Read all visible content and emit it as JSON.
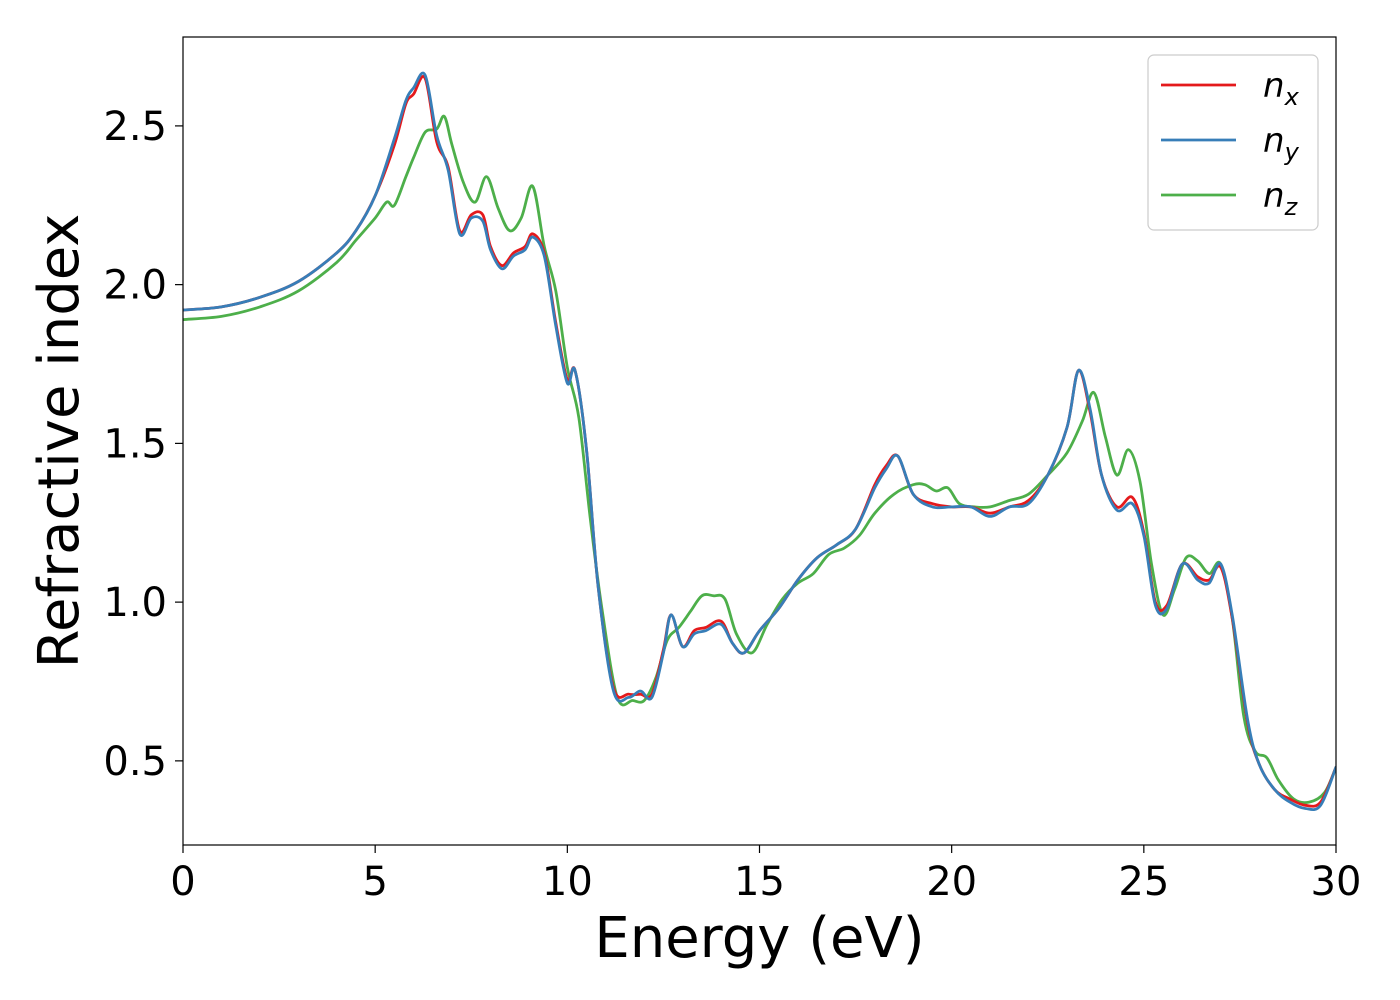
{
  "chart_data": {
    "type": "line",
    "xlabel": "Energy (eV)",
    "ylabel": "Refractive index",
    "xlim": [
      0,
      30
    ],
    "ylim": [
      0.235,
      2.78
    ],
    "xticks": [
      0,
      5,
      10,
      15,
      20,
      25,
      30
    ],
    "xtick_labels": [
      "0",
      "5",
      "10",
      "15",
      "20",
      "25",
      "30"
    ],
    "yticks": [
      0.5,
      1.0,
      1.5,
      2.0,
      2.5
    ],
    "ytick_labels": [
      "0.5",
      "1.0",
      "1.5",
      "2.0",
      "2.5"
    ],
    "grid": false,
    "legend_position": "top-right",
    "series": [
      {
        "name": "n",
        "subscript": "x",
        "color": "#e41a1c",
        "x": [
          0,
          1,
          2,
          3,
          4,
          4.5,
          5,
          5.5,
          5.8,
          6.0,
          6.3,
          6.6,
          6.9,
          7.2,
          7.5,
          7.8,
          8.0,
          8.3,
          8.6,
          8.9,
          9.1,
          9.4,
          9.7,
          10.0,
          10.2,
          10.5,
          10.8,
          11.2,
          11.6,
          11.9,
          12.2,
          12.5,
          12.7,
          13.0,
          13.3,
          13.6,
          14.0,
          14.3,
          14.6,
          15.0,
          15.5,
          16.0,
          16.5,
          17.0,
          17.5,
          18.0,
          18.3,
          18.6,
          19.0,
          19.5,
          20.0,
          20.5,
          21.0,
          21.5,
          22.0,
          22.5,
          23.0,
          23.3,
          23.6,
          23.9,
          24.3,
          24.7,
          25.0,
          25.3,
          25.6,
          26.0,
          26.4,
          26.7,
          27.0,
          27.3,
          27.7,
          28.0,
          28.4,
          28.8,
          29.2,
          29.6,
          30.0
        ],
        "y": [
          1.92,
          1.93,
          1.96,
          2.01,
          2.1,
          2.17,
          2.28,
          2.44,
          2.57,
          2.6,
          2.65,
          2.45,
          2.37,
          2.17,
          2.22,
          2.22,
          2.12,
          2.06,
          2.1,
          2.12,
          2.16,
          2.1,
          1.88,
          1.7,
          1.73,
          1.48,
          1.05,
          0.73,
          0.71,
          0.71,
          0.71,
          0.85,
          0.96,
          0.86,
          0.91,
          0.92,
          0.94,
          0.87,
          0.84,
          0.91,
          0.98,
          1.07,
          1.14,
          1.18,
          1.23,
          1.37,
          1.43,
          1.46,
          1.34,
          1.31,
          1.3,
          1.3,
          1.28,
          1.3,
          1.32,
          1.4,
          1.55,
          1.73,
          1.6,
          1.4,
          1.3,
          1.33,
          1.22,
          1.0,
          0.99,
          1.12,
          1.08,
          1.07,
          1.11,
          0.95,
          0.62,
          0.49,
          0.41,
          0.38,
          0.36,
          0.37,
          0.48
        ]
      },
      {
        "name": "n",
        "subscript": "y",
        "color": "#377eb8",
        "x": [
          0,
          1,
          2,
          3,
          4,
          4.5,
          5,
          5.5,
          5.8,
          6.0,
          6.3,
          6.6,
          6.9,
          7.2,
          7.5,
          7.8,
          8.0,
          8.3,
          8.6,
          8.9,
          9.1,
          9.4,
          9.7,
          10.0,
          10.2,
          10.5,
          10.8,
          11.2,
          11.6,
          11.9,
          12.2,
          12.5,
          12.7,
          13.0,
          13.3,
          13.6,
          14.0,
          14.3,
          14.6,
          15.0,
          15.5,
          16.0,
          16.5,
          17.0,
          17.5,
          18.0,
          18.3,
          18.6,
          19.0,
          19.5,
          20.0,
          20.5,
          21.0,
          21.5,
          22.0,
          22.5,
          23.0,
          23.3,
          23.6,
          23.9,
          24.3,
          24.7,
          25.0,
          25.3,
          25.6,
          26.0,
          26.4,
          26.7,
          27.0,
          27.3,
          27.7,
          28.0,
          28.4,
          28.8,
          29.2,
          29.6,
          30.0
        ],
        "y": [
          1.92,
          1.93,
          1.96,
          2.01,
          2.1,
          2.17,
          2.28,
          2.46,
          2.58,
          2.62,
          2.66,
          2.47,
          2.36,
          2.16,
          2.21,
          2.2,
          2.11,
          2.05,
          2.09,
          2.11,
          2.15,
          2.09,
          1.87,
          1.69,
          1.73,
          1.48,
          1.05,
          0.72,
          0.7,
          0.72,
          0.7,
          0.84,
          0.96,
          0.86,
          0.9,
          0.91,
          0.93,
          0.87,
          0.84,
          0.91,
          0.98,
          1.07,
          1.14,
          1.18,
          1.23,
          1.36,
          1.42,
          1.46,
          1.34,
          1.3,
          1.3,
          1.3,
          1.27,
          1.3,
          1.31,
          1.4,
          1.55,
          1.73,
          1.61,
          1.4,
          1.29,
          1.31,
          1.21,
          0.99,
          0.98,
          1.12,
          1.07,
          1.06,
          1.12,
          0.96,
          0.63,
          0.49,
          0.41,
          0.37,
          0.35,
          0.36,
          0.48
        ]
      },
      {
        "name": "n",
        "subscript": "z",
        "color": "#4daf4a",
        "x": [
          0,
          1,
          2,
          3,
          4,
          4.5,
          5,
          5.3,
          5.5,
          5.8,
          6.0,
          6.3,
          6.6,
          6.8,
          7.0,
          7.3,
          7.6,
          7.9,
          8.2,
          8.5,
          8.8,
          9.1,
          9.4,
          9.7,
          10.0,
          10.3,
          10.6,
          10.9,
          11.3,
          11.7,
          12.0,
          12.3,
          12.6,
          12.9,
          13.2,
          13.5,
          13.8,
          14.1,
          14.4,
          14.8,
          15.2,
          15.6,
          16.0,
          16.4,
          16.8,
          17.2,
          17.6,
          18.0,
          18.5,
          19.0,
          19.3,
          19.6,
          19.9,
          20.2,
          20.6,
          21.0,
          21.5,
          22.0,
          22.5,
          23.0,
          23.4,
          23.7,
          24.0,
          24.3,
          24.6,
          24.9,
          25.2,
          25.5,
          25.8,
          26.1,
          26.4,
          26.7,
          27.0,
          27.3,
          27.6,
          27.9,
          28.2,
          28.5,
          28.9,
          29.3,
          29.7,
          30.0
        ],
        "y": [
          1.89,
          1.9,
          1.93,
          1.98,
          2.07,
          2.14,
          2.21,
          2.26,
          2.25,
          2.34,
          2.4,
          2.48,
          2.49,
          2.53,
          2.44,
          2.32,
          2.26,
          2.34,
          2.24,
          2.17,
          2.21,
          2.31,
          2.12,
          1.98,
          1.74,
          1.58,
          1.26,
          0.98,
          0.7,
          0.69,
          0.69,
          0.76,
          0.88,
          0.92,
          0.97,
          1.02,
          1.02,
          1.01,
          0.9,
          0.84,
          0.93,
          1.01,
          1.06,
          1.09,
          1.15,
          1.17,
          1.21,
          1.28,
          1.34,
          1.37,
          1.37,
          1.35,
          1.36,
          1.31,
          1.3,
          1.3,
          1.32,
          1.34,
          1.4,
          1.47,
          1.57,
          1.66,
          1.52,
          1.4,
          1.48,
          1.38,
          1.12,
          0.96,
          1.04,
          1.14,
          1.13,
          1.09,
          1.12,
          0.95,
          0.64,
          0.53,
          0.51,
          0.44,
          0.38,
          0.37,
          0.4,
          0.48
        ]
      }
    ]
  }
}
